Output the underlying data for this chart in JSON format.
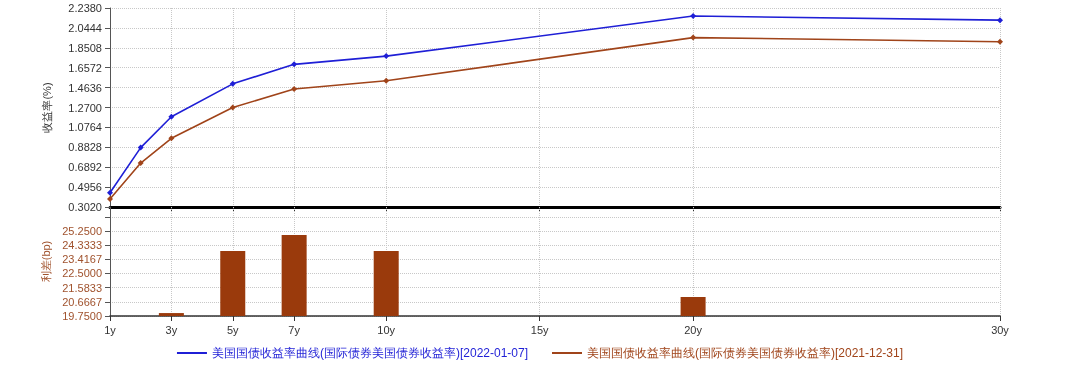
{
  "chart_data": [
    {
      "type": "line",
      "ylabel": "收益率(%)",
      "x": [
        1,
        2,
        3,
        5,
        7,
        10,
        20,
        30
      ],
      "xlim": [
        1,
        30
      ],
      "xticks": [
        1,
        3,
        5,
        7,
        10,
        15,
        20,
        30
      ],
      "ylim": [
        0.302,
        2.238
      ],
      "yticks": [
        {
          "value": 0.302,
          "label": "0.3020"
        },
        {
          "value": 0.4956,
          "label": "0.4956"
        },
        {
          "value": 0.6892,
          "label": "0.6892"
        },
        {
          "value": 0.8828,
          "label": "0.8828"
        },
        {
          "value": 1.0764,
          "label": "1.0764"
        },
        {
          "value": 1.27,
          "label": "1.2700"
        },
        {
          "value": 1.4636,
          "label": "1.4636"
        },
        {
          "value": 1.6572,
          "label": "1.6572"
        },
        {
          "value": 1.8508,
          "label": "1.8508"
        },
        {
          "value": 2.0444,
          "label": "2.0444"
        },
        {
          "value": 2.238,
          "label": "2.2380"
        }
      ],
      "series": [
        {
          "name": "美国国债收益率曲线(国际债券美国债券收益率)[2022-01-07]",
          "color": "#1f1fd6",
          "values": [
            0.44,
            0.88,
            1.18,
            1.5,
            1.69,
            1.77,
            2.16,
            2.12
          ]
        },
        {
          "name": "美国国债收益率曲线(国际债券美国债券收益率)[2021-12-31]",
          "color": "#a0441a",
          "values": [
            0.38,
            0.73,
            0.97,
            1.27,
            1.45,
            1.53,
            1.95,
            1.91
          ]
        }
      ],
      "marker": "diamond",
      "grid": true,
      "legend": "bottom",
      "tick_labels": "y"
    },
    {
      "type": "bar",
      "ylabel": "利差(bp)",
      "x": [
        3,
        5,
        7,
        10,
        20
      ],
      "xlim": [
        1,
        30
      ],
      "xticks": [
        {
          "value": 1,
          "label": "1y"
        },
        {
          "value": 3,
          "label": "3y"
        },
        {
          "value": 5,
          "label": "5y"
        },
        {
          "value": 7,
          "label": "7y"
        },
        {
          "value": 10,
          "label": "10y"
        },
        {
          "value": 15,
          "label": "15y"
        },
        {
          "value": 20,
          "label": "20y"
        },
        {
          "value": 30,
          "label": "30y"
        }
      ],
      "ylim": [
        19.75,
        26.8
      ],
      "yticks": [
        {
          "value": 19.75,
          "label": "19.7500"
        },
        {
          "value": 20.6667,
          "label": "20.6667"
        },
        {
          "value": 21.5833,
          "label": "21.5833"
        },
        {
          "value": 22.5,
          "label": "22.5000"
        },
        {
          "value": 23.4167,
          "label": "23.4167"
        },
        {
          "value": 24.3333,
          "label": "24.3333"
        },
        {
          "value": 25.25,
          "label": "25.2500"
        },
        {
          "value": 26.1667,
          "label": null
        }
      ],
      "series": [
        {
          "color": "#9a3a0c",
          "values": [
            19.94,
            23.95,
            24.99,
            23.95,
            20.98
          ]
        }
      ],
      "grid": true
    }
  ]
}
